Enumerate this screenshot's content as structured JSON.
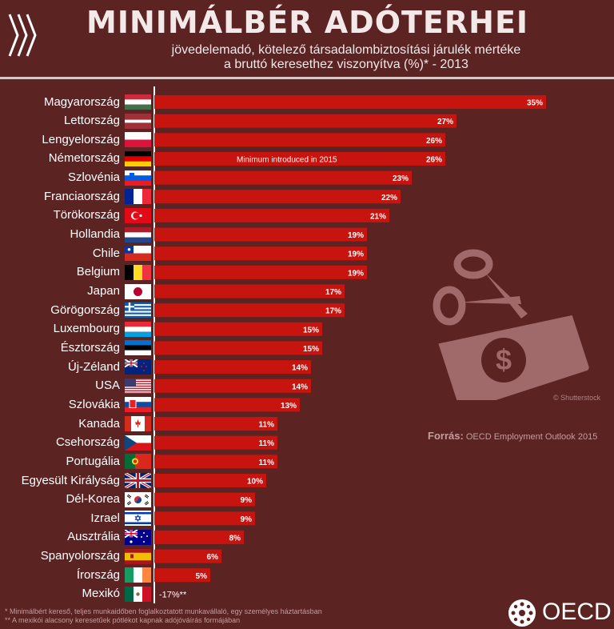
{
  "header": {
    "title": "MINIMÁLBÉR ADÓTERHEI",
    "subtitle_line1": "jövedelemadó, kötelező társadalombiztosítási járulék mértéke",
    "subtitle_line2": "a bruttó keresethez viszonyítva (%)* - 2013"
  },
  "chart_data": {
    "type": "bar",
    "orientation": "horizontal",
    "title": "MINIMÁLBÉR ADÓTERHEI",
    "categories": [
      "Magyarország",
      "Lettország",
      "Lengyelország",
      "Németország",
      "Szlovénia",
      "Franciaország",
      "Törökország",
      "Hollandia",
      "Chile",
      "Belgium",
      "Japan",
      "Görögország",
      "Luxembourg",
      "Észtország",
      "Új-Zéland",
      "USA",
      "Szlovákia",
      "Kanada",
      "Csehország",
      "Portugália",
      "Egyesült Királyság",
      "Dél-Korea",
      "Izrael",
      "Ausztrália",
      "Spanyolország",
      "Írország",
      "Mexikó"
    ],
    "values": [
      35,
      27,
      26,
      26,
      23,
      22,
      21,
      19,
      19,
      19,
      17,
      17,
      15,
      15,
      14,
      14,
      13,
      11,
      11,
      11,
      10,
      9,
      9,
      8,
      6,
      5,
      -17
    ],
    "value_labels": [
      "35%",
      "27%",
      "26%",
      "26%",
      "23%",
      "22%",
      "21%",
      "19%",
      "19%",
      "19%",
      "17%",
      "17%",
      "15%",
      "15%",
      "14%",
      "14%",
      "13%",
      "11%",
      "11%",
      "11%",
      "10%",
      "9%",
      "9%",
      "8%",
      "6%",
      "5%",
      "-17%**"
    ],
    "annotation": "Minimum introduced in 2015",
    "annotation_category": "Németország",
    "xlim": [
      0,
      35
    ],
    "bar_color": "#c7140f",
    "background_color": "#5c2323"
  },
  "flags": [
    "hungary-flag-icon",
    "latvia-flag-icon",
    "poland-flag-icon",
    "germany-flag-icon",
    "slovenia-flag-icon",
    "france-flag-icon",
    "turkey-flag-icon",
    "netherlands-flag-icon",
    "chile-flag-icon",
    "belgium-flag-icon",
    "japan-flag-icon",
    "greece-flag-icon",
    "luxembourg-flag-icon",
    "estonia-flag-icon",
    "new-zealand-flag-icon",
    "usa-flag-icon",
    "slovakia-flag-icon",
    "canada-flag-icon",
    "czechia-flag-icon",
    "portugal-flag-icon",
    "uk-flag-icon",
    "south-korea-flag-icon",
    "israel-flag-icon",
    "australia-flag-icon",
    "spain-flag-icon",
    "ireland-flag-icon",
    "mexico-flag-icon"
  ],
  "source": {
    "label": "Forrás:",
    "text": "OECD Employment Outlook 2015"
  },
  "watermark": "© Shutterstock",
  "footnotes": {
    "line1": "* Minimálbért kereső, teljes munkaidőben foglalkoztatott munkavállaló, egy személyes háztartásban",
    "line2": "** A mexikói alacsony keresetűek pótlékot kapnak adójóváírás formájában"
  },
  "logo": {
    "text": "OECD"
  },
  "illustration": {
    "icon": "scissors-cutting-banknote-icon",
    "color": "#a06a6a"
  }
}
